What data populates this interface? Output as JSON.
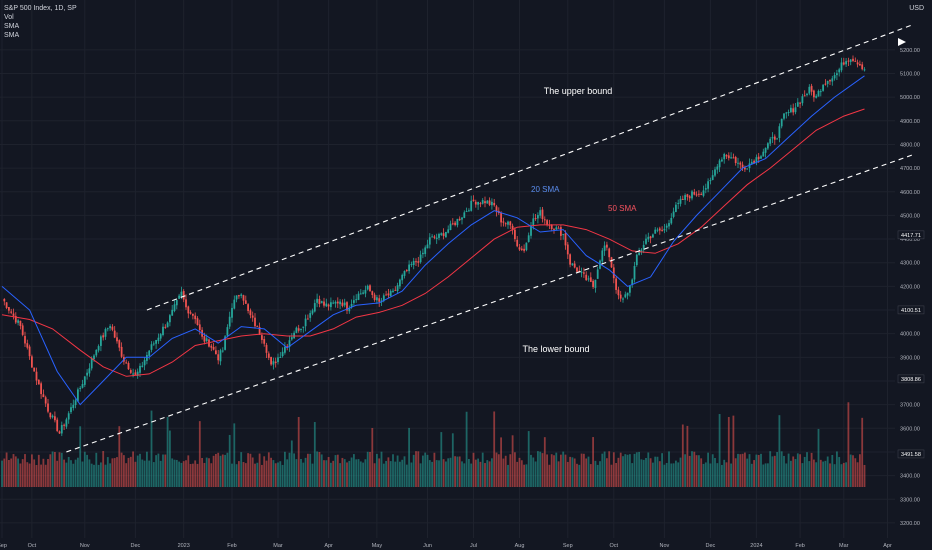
{
  "header": {
    "symbol": "S&P 500 Index, 1D, SP",
    "indicators": [
      "Vol",
      "SMA",
      "SMA"
    ],
    "currency": "USD"
  },
  "colors": {
    "background": "#131722",
    "up": "#26a69a",
    "down": "#ef5350",
    "sma20": "#2962ff",
    "sma50": "#f23645",
    "channel": "#ffffff"
  },
  "chart_data": {
    "type": "candlestick",
    "title": "S&P 500 Index, 1D, SP",
    "x_ticks": [
      "Sep",
      "Oct",
      "Nov",
      "Dec",
      "2023",
      "Feb",
      "Mar",
      "Apr",
      "May",
      "Jun",
      "Jul",
      "Aug",
      "Sep",
      "Oct",
      "Nov",
      "Dec",
      "2024",
      "Feb",
      "Mar",
      "Apr"
    ],
    "y_ticks": [
      3200,
      3300,
      3400,
      3500,
      3600,
      3700,
      3800,
      3900,
      4000,
      4100,
      4200,
      4300,
      4400,
      4500,
      4600,
      4700,
      4800,
      4900,
      5000,
      5100,
      5200
    ],
    "ylim": [
      3170,
      5250
    ],
    "price_labels": [
      "4417.71",
      "4100.51",
      "3808.86",
      "3491.58"
    ],
    "annotations": {
      "upper": "The upper bound",
      "lower": "The lower bound",
      "sma20": "20 SMA",
      "sma50": "50 SMA"
    },
    "close_path": [
      [
        0,
        4150
      ],
      [
        8,
        4030
      ],
      [
        12,
        3900
      ],
      [
        16,
        3780
      ],
      [
        20,
        3680
      ],
      [
        25,
        3580
      ],
      [
        28,
        3640
      ],
      [
        33,
        3750
      ],
      [
        37,
        3840
      ],
      [
        42,
        3960
      ],
      [
        47,
        4040
      ],
      [
        50,
        3960
      ],
      [
        53,
        3890
      ],
      [
        58,
        3820
      ],
      [
        60,
        3850
      ],
      [
        64,
        3930
      ],
      [
        68,
        3990
      ],
      [
        73,
        4070
      ],
      [
        78,
        4170
      ],
      [
        80,
        4110
      ],
      [
        84,
        4070
      ],
      [
        87,
        3980
      ],
      [
        90,
        3960
      ],
      [
        94,
        3900
      ],
      [
        96,
        3930
      ],
      [
        100,
        4120
      ],
      [
        104,
        4180
      ],
      [
        107,
        4090
      ],
      [
        110,
        4040
      ],
      [
        114,
        3970
      ],
      [
        117,
        3860
      ],
      [
        120,
        3900
      ],
      [
        124,
        3960
      ],
      [
        127,
        4010
      ],
      [
        130,
        4030
      ],
      [
        134,
        4090
      ],
      [
        137,
        4150
      ],
      [
        140,
        4120
      ],
      [
        143,
        4120
      ],
      [
        147,
        4140
      ],
      [
        150,
        4110
      ],
      [
        154,
        4160
      ],
      [
        159,
        4190
      ],
      [
        164,
        4130
      ],
      [
        167,
        4160
      ],
      [
        170,
        4170
      ],
      [
        174,
        4240
      ],
      [
        178,
        4290
      ],
      [
        182,
        4320
      ],
      [
        186,
        4400
      ],
      [
        190,
        4410
      ],
      [
        195,
        4450
      ],
      [
        200,
        4500
      ],
      [
        205,
        4560
      ],
      [
        210,
        4560
      ],
      [
        214,
        4540
      ],
      [
        217,
        4480
      ],
      [
        222,
        4450
      ],
      [
        224,
        4370
      ],
      [
        227,
        4350
      ],
      [
        230,
        4470
      ],
      [
        234,
        4510
      ],
      [
        237,
        4470
      ],
      [
        240,
        4450
      ],
      [
        244,
        4420
      ],
      [
        247,
        4300
      ],
      [
        250,
        4270
      ],
      [
        253,
        4240
      ],
      [
        257,
        4200
      ],
      [
        260,
        4320
      ],
      [
        262,
        4370
      ],
      [
        264,
        4330
      ],
      [
        266,
        4240
      ],
      [
        268,
        4150
      ],
      [
        270,
        4140
      ],
      [
        273,
        4200
      ],
      [
        276,
        4320
      ],
      [
        280,
        4400
      ],
      [
        284,
        4430
      ],
      [
        288,
        4440
      ],
      [
        292,
        4520
      ],
      [
        296,
        4570
      ],
      [
        300,
        4590
      ],
      [
        304,
        4600
      ],
      [
        308,
        4640
      ],
      [
        311,
        4720
      ],
      [
        314,
        4760
      ],
      [
        318,
        4740
      ],
      [
        322,
        4700
      ],
      [
        325,
        4720
      ],
      [
        329,
        4750
      ],
      [
        333,
        4800
      ],
      [
        337,
        4840
      ],
      [
        340,
        4920
      ],
      [
        344,
        4950
      ],
      [
        348,
        5000
      ],
      [
        351,
        5030
      ],
      [
        354,
        5000
      ],
      [
        357,
        5060
      ],
      [
        360,
        5080
      ],
      [
        363,
        5100
      ],
      [
        366,
        5150
      ],
      [
        369,
        5170
      ],
      [
        372,
        5150
      ],
      [
        375,
        5120
      ]
    ],
    "sma20_path": [
      [
        0,
        4200
      ],
      [
        12,
        4100
      ],
      [
        24,
        3840
      ],
      [
        34,
        3700
      ],
      [
        44,
        3800
      ],
      [
        54,
        3900
      ],
      [
        64,
        3900
      ],
      [
        74,
        3980
      ],
      [
        84,
        4020
      ],
      [
        94,
        3960
      ],
      [
        104,
        4030
      ],
      [
        114,
        4020
      ],
      [
        124,
        3940
      ],
      [
        134,
        4010
      ],
      [
        144,
        4080
      ],
      [
        154,
        4120
      ],
      [
        164,
        4130
      ],
      [
        174,
        4180
      ],
      [
        184,
        4290
      ],
      [
        194,
        4380
      ],
      [
        204,
        4460
      ],
      [
        214,
        4520
      ],
      [
        224,
        4490
      ],
      [
        234,
        4430
      ],
      [
        244,
        4440
      ],
      [
        254,
        4330
      ],
      [
        264,
        4270
      ],
      [
        272,
        4200
      ],
      [
        282,
        4240
      ],
      [
        292,
        4390
      ],
      [
        302,
        4500
      ],
      [
        312,
        4600
      ],
      [
        322,
        4700
      ],
      [
        332,
        4740
      ],
      [
        342,
        4830
      ],
      [
        352,
        4920
      ],
      [
        362,
        5000
      ],
      [
        375,
        5090
      ]
    ],
    "sma50_path": [
      [
        0,
        4080
      ],
      [
        12,
        4060
      ],
      [
        22,
        4020
      ],
      [
        34,
        3930
      ],
      [
        44,
        3860
      ],
      [
        54,
        3820
      ],
      [
        64,
        3830
      ],
      [
        74,
        3880
      ],
      [
        84,
        3950
      ],
      [
        94,
        3970
      ],
      [
        104,
        3990
      ],
      [
        114,
        4000
      ],
      [
        124,
        3990
      ],
      [
        134,
        3990
      ],
      [
        144,
        4020
      ],
      [
        154,
        4070
      ],
      [
        164,
        4090
      ],
      [
        174,
        4120
      ],
      [
        184,
        4170
      ],
      [
        194,
        4240
      ],
      [
        204,
        4320
      ],
      [
        214,
        4400
      ],
      [
        224,
        4450
      ],
      [
        234,
        4460
      ],
      [
        244,
        4460
      ],
      [
        254,
        4440
      ],
      [
        264,
        4400
      ],
      [
        274,
        4350
      ],
      [
        284,
        4340
      ],
      [
        294,
        4380
      ],
      [
        304,
        4450
      ],
      [
        314,
        4540
      ],
      [
        324,
        4630
      ],
      [
        334,
        4700
      ],
      [
        344,
        4780
      ],
      [
        354,
        4860
      ],
      [
        366,
        4920
      ],
      [
        375,
        4950
      ]
    ],
    "channel": {
      "upper": [
        [
          63,
          4100
        ],
        [
          375,
          5200
        ]
      ],
      "lower": [
        [
          28,
          3500
        ],
        [
          375,
          4650
        ]
      ]
    }
  }
}
